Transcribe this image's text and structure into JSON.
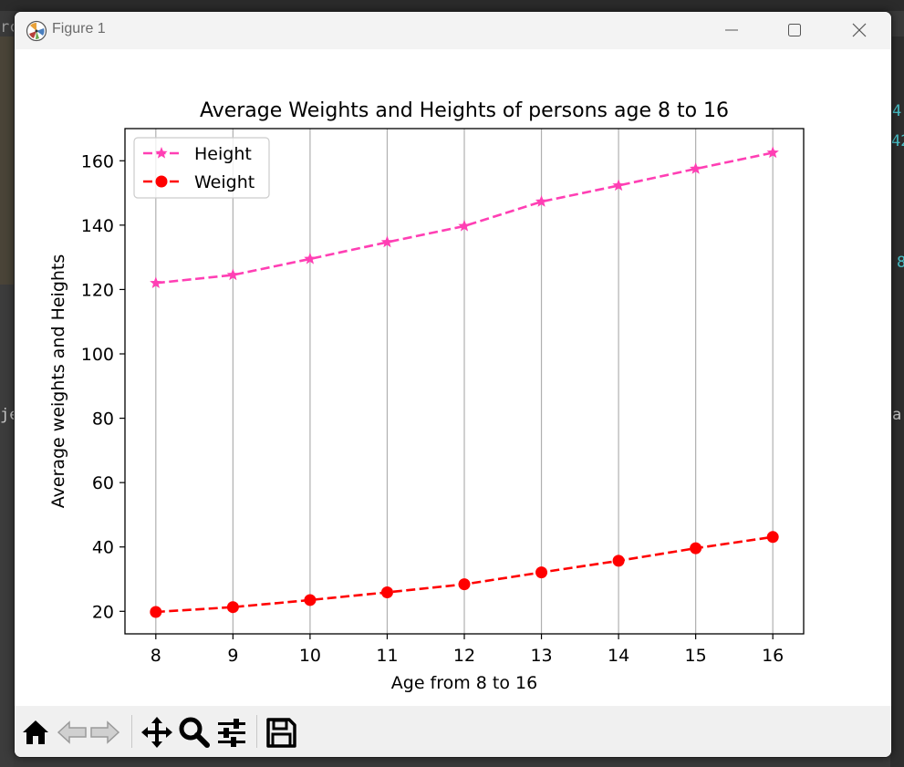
{
  "window": {
    "title": "Figure 1"
  },
  "background": {
    "fragments": [
      "rc",
      "4",
      "42",
      "8",
      "je",
      "a"
    ]
  },
  "toolbar": {
    "buttons": [
      "home-icon",
      "back-icon",
      "forward-icon",
      "pan-icon",
      "zoom-icon",
      "configure-subplots-icon",
      "save-icon"
    ]
  },
  "chart_data": {
    "type": "line",
    "title": "Average Weights and Heights of persons age 8 to 16",
    "xlabel": "Age from 8 to 16",
    "ylabel": "Average weights and Heights",
    "x": [
      8,
      9,
      10,
      11,
      12,
      13,
      14,
      15,
      16
    ],
    "xlim": [
      7.6,
      16.4
    ],
    "ylim": [
      13,
      170
    ],
    "xticks": [
      "8",
      "9",
      "10",
      "11",
      "12",
      "13",
      "14",
      "15",
      "16"
    ],
    "yticks": [
      "20",
      "40",
      "60",
      "80",
      "100",
      "120",
      "140",
      "160"
    ],
    "grid": "vertical lines only",
    "legend_position": "top-left",
    "series": [
      {
        "name": "Height",
        "values": [
          122,
          124.5,
          129.5,
          134.7,
          139.7,
          147.3,
          152.3,
          157.5,
          162.5
        ],
        "color": "#ff3fb4",
        "marker": "star",
        "linestyle": "dashed"
      },
      {
        "name": "Weight",
        "values": [
          19.8,
          21.3,
          23.5,
          25.9,
          28.4,
          32.1,
          35.7,
          39.6,
          43.1
        ],
        "color": "#ff0000",
        "marker": "circle",
        "linestyle": "dashed"
      }
    ]
  }
}
